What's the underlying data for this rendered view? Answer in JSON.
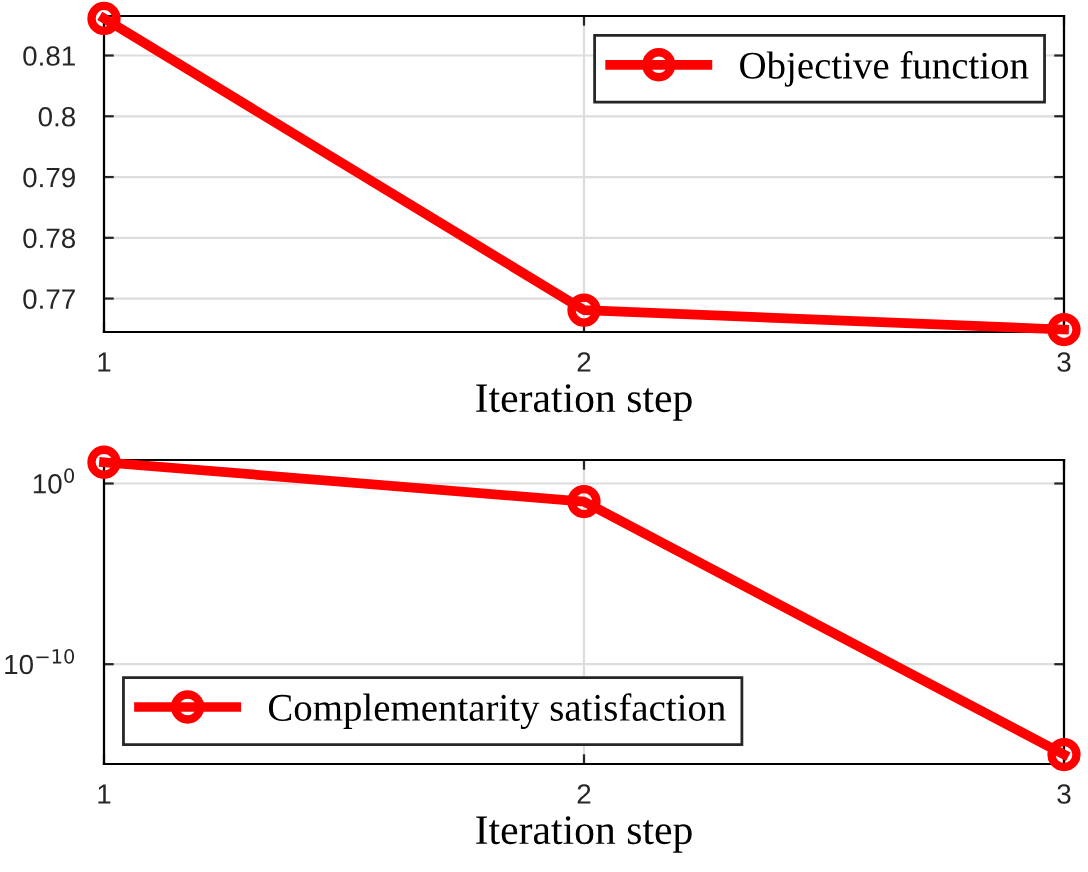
{
  "chart_data": [
    {
      "type": "line",
      "xlabel": "Iteration step",
      "x": [
        1,
        2,
        3
      ],
      "series": [
        {
          "name": "Objective function",
          "color": "#ff0000",
          "values": [
            0.8161,
            0.7681,
            0.7649
          ]
        }
      ],
      "xlim": [
        1,
        3
      ],
      "xticks": [
        1,
        2,
        3
      ],
      "ylim": [
        0.7645,
        0.8165
      ],
      "yticks": [
        0.77,
        0.78,
        0.79,
        0.8,
        0.81
      ],
      "grid": true,
      "legend": "top right",
      "marker": "circle",
      "line_style": "solid"
    },
    {
      "type": "line",
      "xlabel": "Iteration step",
      "x": [
        1,
        2,
        3
      ],
      "series": [
        {
          "name": "Complementarity satisfaction",
          "color": "#ff0000",
          "values": [
            15,
            0.1,
            1e-15
          ]
        }
      ],
      "xlim": [
        1,
        3
      ],
      "xticks": [
        1,
        2,
        3
      ],
      "log": "y",
      "ylim": [
        3e-16,
        20
      ],
      "yticks": [
        {
          "value": 1e-10,
          "label": "10$^{−10}$"
        },
        {
          "value": 1,
          "label": "10$^{0}$"
        }
      ],
      "grid": true,
      "legend": "bottom left",
      "marker": "circle",
      "line_style": "solid"
    }
  ]
}
